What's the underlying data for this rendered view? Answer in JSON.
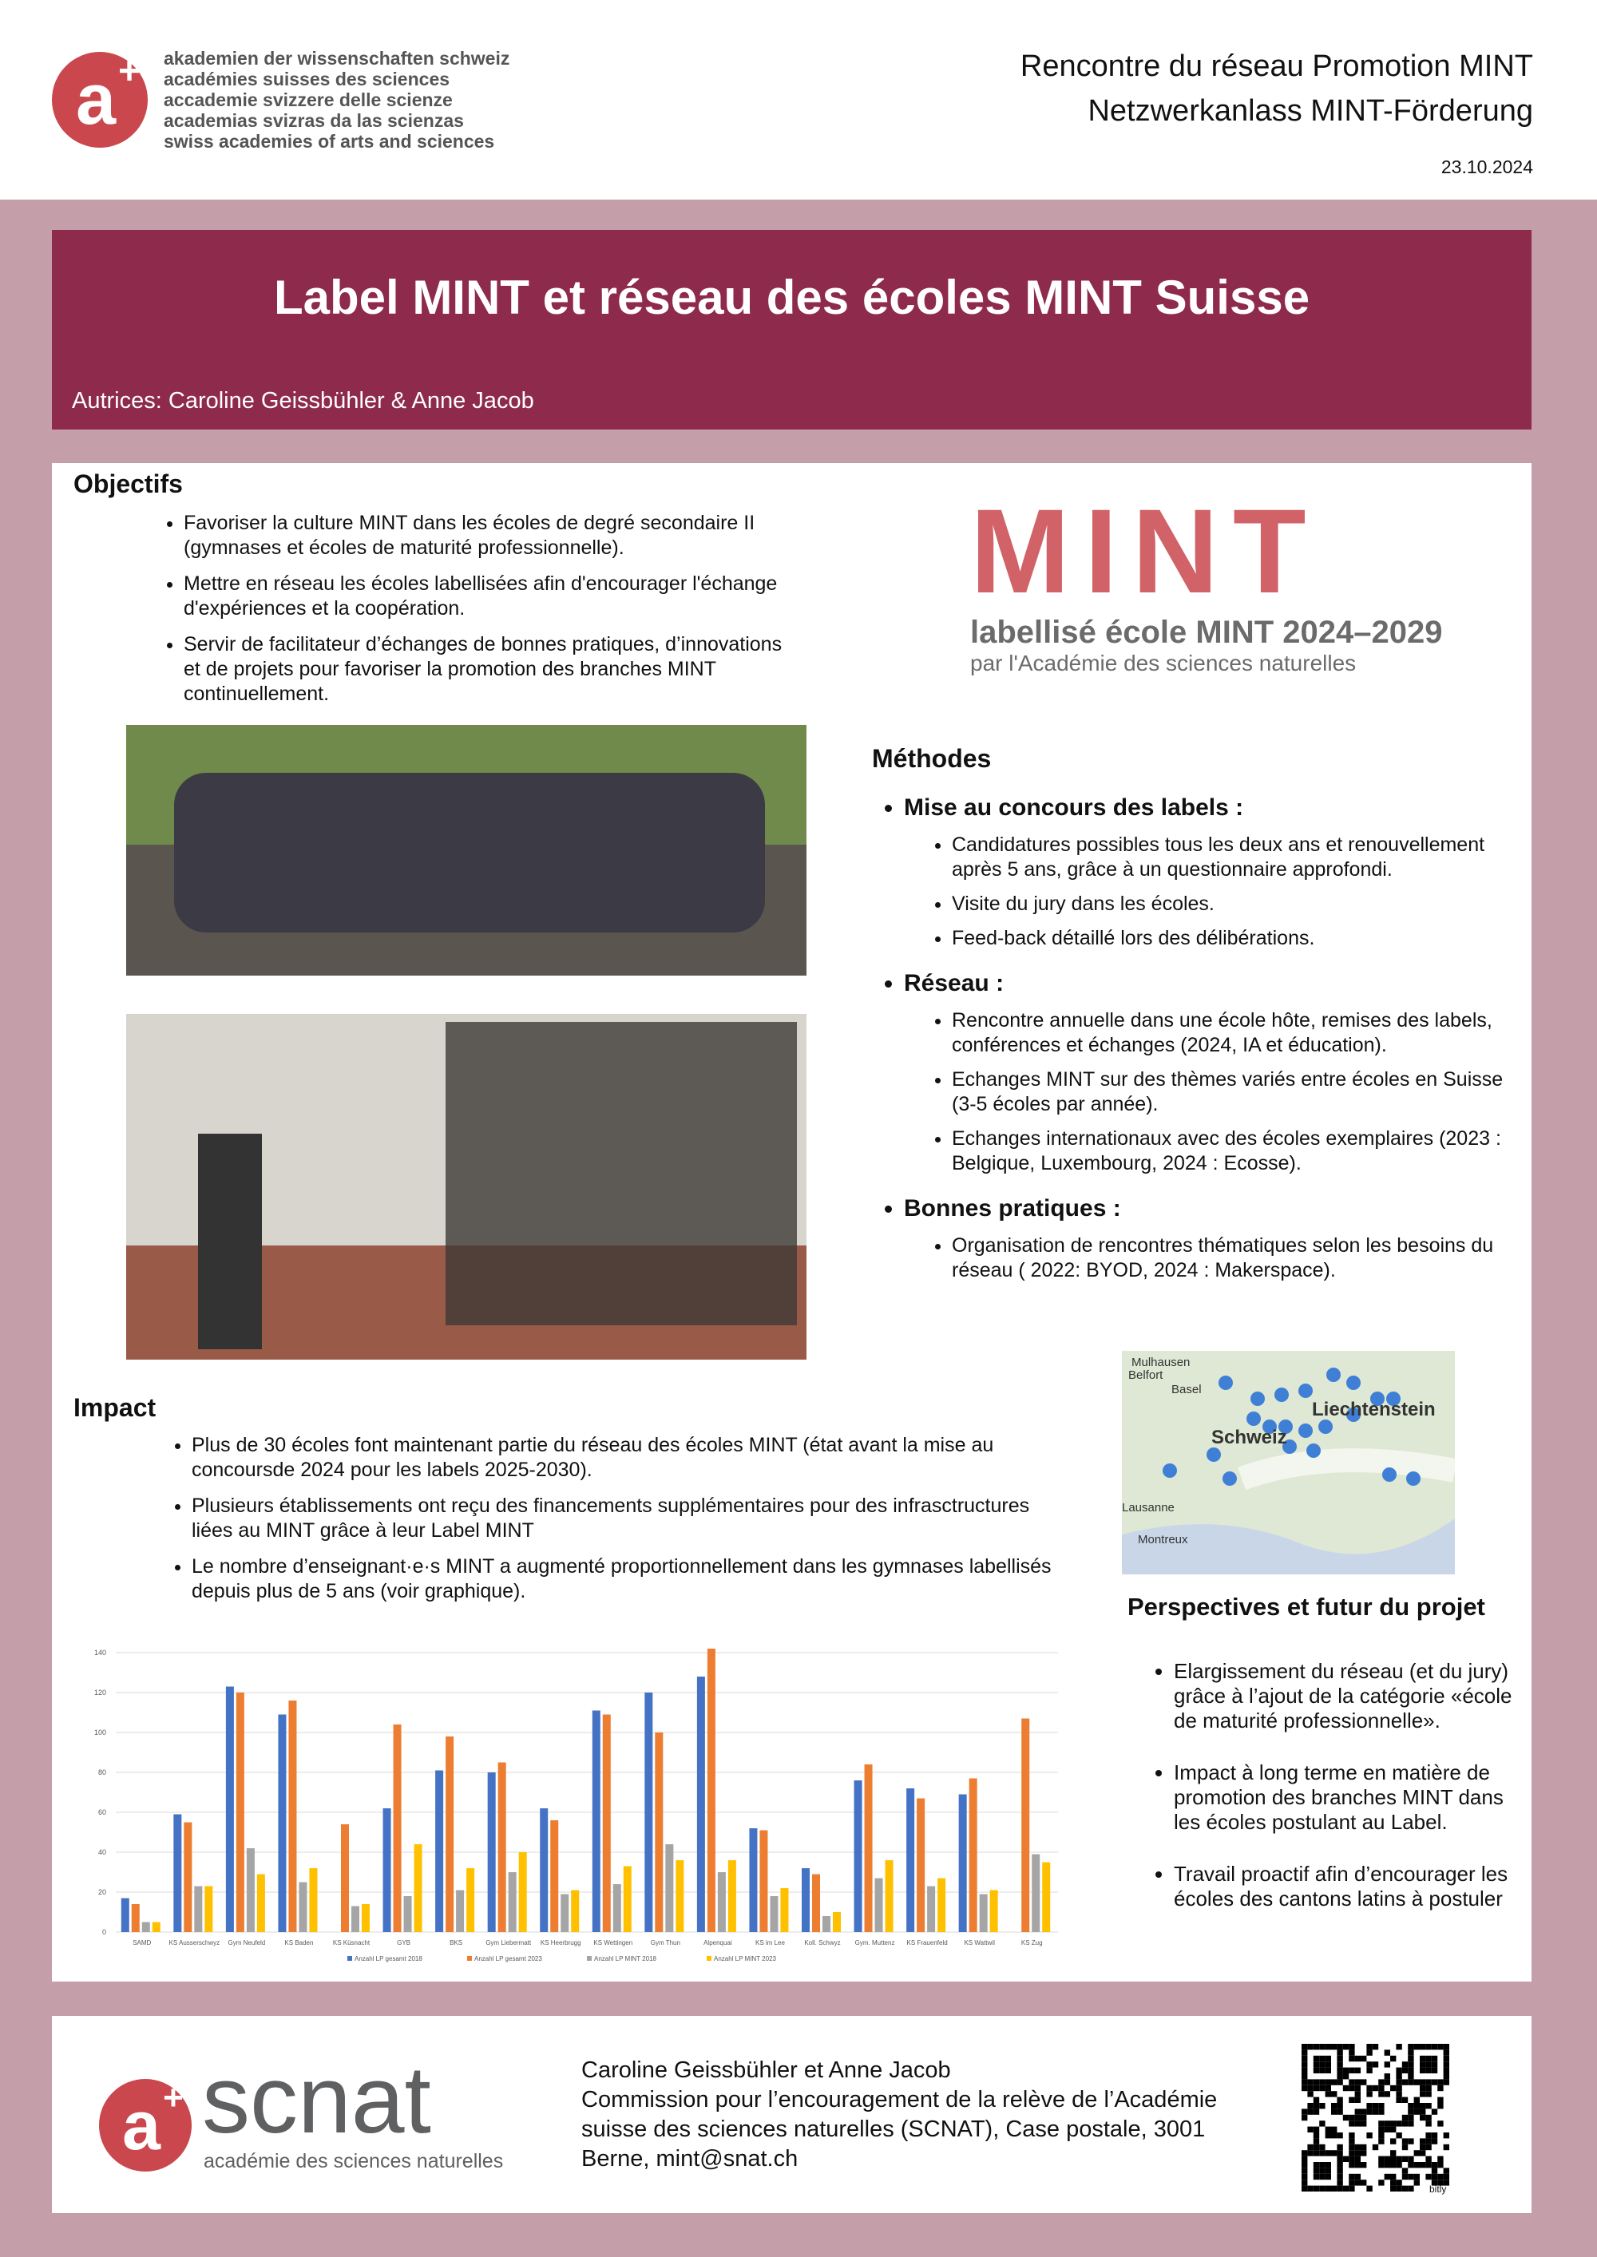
{
  "header": {
    "org_lines": [
      "akademien der wissenschaften schweiz",
      "académies suisses des sciences",
      "accademie svizzere delle scienze",
      "academias svizras da las scienzas",
      "swiss academies of arts and sciences"
    ],
    "event_lines": [
      "Rencontre du réseau Promotion MINT",
      "Netzwerkanlass MINT-Förderung"
    ],
    "date": "23.10.2024"
  },
  "title": "Label MINT et réseau des écoles MINT Suisse",
  "authors": "Autrices: Caroline Geissbühler & Anne Jacob",
  "objectifs": {
    "heading": "Objectifs",
    "items": [
      "Favoriser la culture MINT dans les écoles de degré secondaire II (gymnases et écoles de maturité professionnelle).",
      "Mettre en réseau les écoles labellisées afin d'encourager l'échange d'expériences et la coopération.",
      "Servir de facilitateur d’échanges de bonnes pratiques, d’innovations et de projets pour favoriser la promotion des branches MINT continuellement."
    ]
  },
  "label_logo": {
    "word": "MINT",
    "line1": "labellisé école MINT 2024–2029",
    "line2": "par l'Académie des sciences naturelles"
  },
  "methodes": {
    "heading": "Méthodes",
    "sections": [
      {
        "title": "Mise au concours des labels :",
        "items": [
          "Candidatures possibles  tous les deux ans et renouvellement après 5 ans, grâce à un questionnaire approfondi.",
          "Visite du jury dans les écoles.",
          "Feed-back détaillé lors des délibérations."
        ]
      },
      {
        "title": "Réseau :",
        "items": [
          "Rencontre annuelle dans une école hôte, remises des labels, conférences et échanges (2024, IA et éducation).",
          "Echanges MINT sur des thèmes variés entre écoles en Suisse (3-5 écoles par année).",
          "Echanges internationaux avec des écoles exemplaires (2023 : Belgique, Luxembourg, 2024 : Ecosse)."
        ]
      },
      {
        "title": "Bonnes pratiques :",
        "items": [
          "Organisation de rencontres thématiques selon les besoins du réseau ( 2022: BYOD, 2024 : Makerspace)."
        ]
      }
    ]
  },
  "map": {
    "labels": [
      "Mulhausen",
      "Belfort",
      "Basel",
      "Liechtenstein",
      "Schweiz",
      "Lausanne",
      "Montreux"
    ]
  },
  "impact": {
    "heading": "Impact",
    "items": [
      "Plus de 30 écoles font maintenant partie du réseau des écoles MINT (état avant la mise au concoursde 2024 pour les labels 2025-2030).",
      "Plusieurs établissements ont reçu des financements supplémentaires pour des infrasctructures liées au MINT grâce à leur Label MINT",
      "Le nombre d’enseignant·e·s MINT a augmenté proportionnellement dans les gymnases labellisés depuis plus de 5 ans (voir graphique)."
    ]
  },
  "perspectives": {
    "heading": "Perspectives et futur du projet",
    "items": [
      "Elargissement du réseau (et du jury) grâce à l’ajout de la catégorie «école de maturité professionnelle».",
      "Impact à long terme en matière de promotion des branches MINT dans les écoles postulant au Label.",
      "Travail proactif afin d’encourager les écoles des cantons latins à postuler"
    ]
  },
  "chart_data": {
    "type": "bar",
    "categories": [
      "SAMD",
      "KS Ausserschwyz",
      "Gym Neufeld",
      "KS Baden",
      "KS Küsnacht",
      "GYB",
      "BKS",
      "Gym Liebermatt",
      "KS Heerbrugg",
      "KS Wettingen",
      "Gym Thun",
      "Alpenquai",
      "KS im Lee",
      "Koll. Schwyz",
      "Gym. Muttenz",
      "KS Frauenfeld",
      "KS Wattwil",
      "KS Zug"
    ],
    "series": [
      {
        "name": "Anzahl LP gesamt 2018",
        "color": "#4472c4",
        "values": [
          17,
          59,
          123,
          109,
          null,
          62,
          81,
          80,
          62,
          111,
          120,
          128,
          52,
          32,
          76,
          72,
          69,
          null
        ]
      },
      {
        "name": "Anzahl LP gesamt 2023",
        "color": "#ed7d31",
        "values": [
          14,
          55,
          120,
          116,
          54,
          104,
          98,
          85,
          56,
          109,
          100,
          142,
          51,
          29,
          84,
          67,
          77,
          107
        ]
      },
      {
        "name": "Anzahl LP MINT 2018",
        "color": "#a5a5a5",
        "values": [
          5,
          23,
          42,
          25,
          13,
          18,
          21,
          30,
          19,
          24,
          44,
          30,
          18,
          8,
          27,
          23,
          19,
          39
        ]
      },
      {
        "name": "Anzahl LP MINT 2023",
        "color": "#ffc000",
        "values": [
          5,
          23,
          29,
          32,
          14,
          44,
          32,
          40,
          21,
          33,
          36,
          36,
          22,
          10,
          36,
          27,
          21,
          35
        ]
      }
    ],
    "ylim": [
      0,
      140
    ],
    "yticks": [
      0,
      20,
      40,
      60,
      80,
      100,
      120,
      140
    ],
    "grid": true
  },
  "footer": {
    "logo_word": "scnat",
    "logo_sub": "académie des sciences naturelles",
    "contact_lines": [
      "Caroline Geissbühler et Anne Jacob",
      "Commission pour l’encouragement de la relève de l’Académie",
      "suisse des sciences naturelles (SCNAT), Case postale, 3001",
      "Berne, mint@snat.ch"
    ],
    "qr_label": "bitly"
  }
}
